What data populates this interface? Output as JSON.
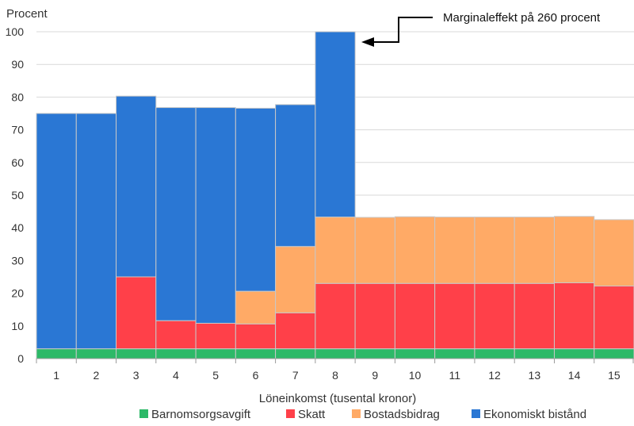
{
  "chart_data": {
    "type": "bar",
    "stacked": true,
    "ylabel": "Procent",
    "xlabel": "Löneinkomst (tusental kronor)",
    "ylim": [
      0,
      100
    ],
    "yticks": [
      0,
      10,
      20,
      30,
      40,
      50,
      60,
      70,
      80,
      90,
      100
    ],
    "grid": true,
    "legend_position": "bottom",
    "categories": [
      "1",
      "2",
      "3",
      "4",
      "5",
      "6",
      "7",
      "8",
      "9",
      "10",
      "11",
      "12",
      "13",
      "14",
      "15"
    ],
    "series": [
      {
        "name": "Barnomsorgsavgift",
        "color": "#2db968",
        "values": [
          3,
          3,
          3,
          3,
          3,
          3,
          3,
          3,
          3,
          3,
          3,
          3,
          3,
          3,
          3
        ]
      },
      {
        "name": "Skatt",
        "color": "#ff4049",
        "values": [
          0,
          0,
          22,
          8.6,
          7.8,
          7.6,
          11,
          20,
          20,
          20,
          20,
          20,
          20,
          20.2,
          19.2
        ]
      },
      {
        "name": "Bostadsbidrag",
        "color": "#ffaa66",
        "values": [
          0,
          0,
          0,
          0,
          0,
          10,
          20.3,
          20.3,
          20.2,
          20.4,
          20.3,
          20.3,
          20.3,
          20.3,
          20.3
        ]
      },
      {
        "name": "Ekonomiskt bistånd",
        "color": "#2a77d4",
        "values": [
          72,
          72,
          55.3,
          65.2,
          66,
          56,
          43.4,
          56.7,
          0,
          0,
          0,
          0,
          0,
          0,
          0
        ]
      }
    ],
    "annotation": {
      "text": "Marginaleffekt på 260 procent",
      "category": "8"
    }
  }
}
